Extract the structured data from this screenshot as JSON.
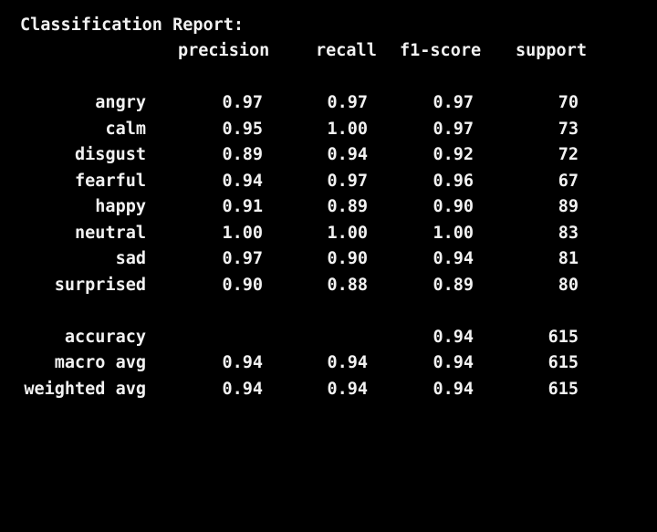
{
  "report": {
    "title": "Classification Report:",
    "headers": {
      "precision": "precision",
      "recall": "recall",
      "f1": "f1-score",
      "support": "support"
    },
    "classes": [
      {
        "label": "angry",
        "precision": "0.97",
        "recall": "0.97",
        "f1": "0.97",
        "support": "70"
      },
      {
        "label": "calm",
        "precision": "0.95",
        "recall": "1.00",
        "f1": "0.97",
        "support": "73"
      },
      {
        "label": "disgust",
        "precision": "0.89",
        "recall": "0.94",
        "f1": "0.92",
        "support": "72"
      },
      {
        "label": "fearful",
        "precision": "0.94",
        "recall": "0.97",
        "f1": "0.96",
        "support": "67"
      },
      {
        "label": "happy",
        "precision": "0.91",
        "recall": "0.89",
        "f1": "0.90",
        "support": "89"
      },
      {
        "label": "neutral",
        "precision": "1.00",
        "recall": "1.00",
        "f1": "1.00",
        "support": "83"
      },
      {
        "label": "sad",
        "precision": "0.97",
        "recall": "0.90",
        "f1": "0.94",
        "support": "81"
      },
      {
        "label": "surprised",
        "precision": "0.90",
        "recall": "0.88",
        "f1": "0.89",
        "support": "80"
      }
    ],
    "accuracy": {
      "label": "accuracy",
      "f1": "0.94",
      "support": "615"
    },
    "macro_avg": {
      "label": "macro avg",
      "precision": "0.94",
      "recall": "0.94",
      "f1": "0.94",
      "support": "615"
    },
    "weighted_avg": {
      "label": "weighted avg",
      "precision": "0.94",
      "recall": "0.94",
      "f1": "0.94",
      "support": "615"
    }
  },
  "colors": {
    "background": "#000000",
    "text": "#f2f2f2"
  }
}
